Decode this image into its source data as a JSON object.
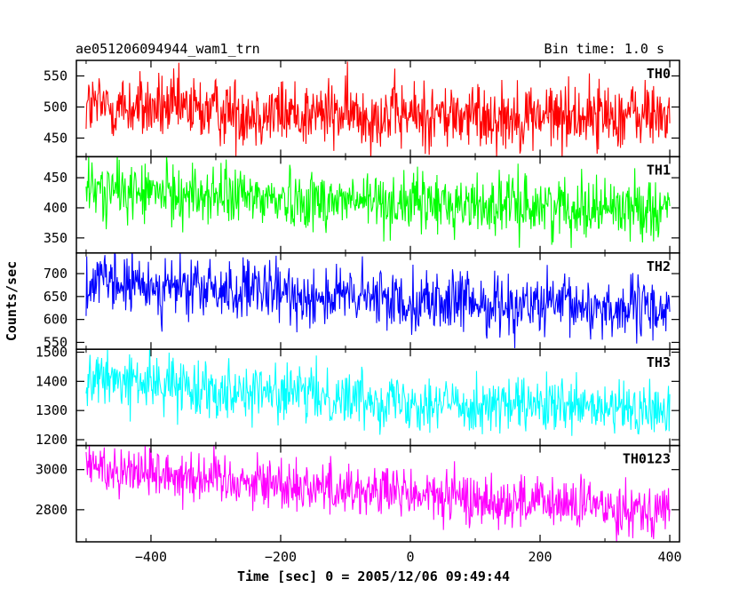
{
  "header": {
    "title": "ae051206094944_wam1_trn",
    "bin_time": "Bin time: 1.0 s"
  },
  "chart_data": {
    "type": "line",
    "title": "ae051206094944_wam1_trn",
    "xlabel": "Time [sec] 0 = 2005/12/06 09:49:44",
    "ylabel": "Counts/sec",
    "xlim": [
      -515,
      415
    ],
    "x_ticks": [
      -400,
      -200,
      0,
      200,
      400
    ],
    "x_tick_labels": [
      "−400",
      "−200",
      "0",
      "200",
      "400"
    ],
    "grid": false,
    "panels": [
      {
        "name": "TH0",
        "color": "#ff0000",
        "ylim": [
          420,
          575
        ],
        "y_ticks": [
          450,
          500,
          550
        ],
        "series": [
          {
            "name": "TH0",
            "x_start": -500,
            "x_end": 400,
            "bin": 1.0,
            "trend": [
              [
                -500,
                502
              ],
              [
                -200,
                490
              ],
              [
                100,
                485
              ],
              [
                400,
                488
              ]
            ],
            "noise_halfwidth": 50
          }
        ]
      },
      {
        "name": "TH1",
        "color": "#00ff00",
        "ylim": [
          325,
          485
        ],
        "y_ticks": [
          350,
          400,
          450
        ],
        "series": [
          {
            "name": "TH1",
            "x_start": -500,
            "x_end": 400,
            "bin": 1.0,
            "trend": [
              [
                -500,
                430
              ],
              [
                -200,
                415
              ],
              [
                100,
                405
              ],
              [
                400,
                400
              ]
            ],
            "noise_halfwidth": 45
          }
        ]
      },
      {
        "name": "TH2",
        "color": "#0000ff",
        "ylim": [
          535,
          745
        ],
        "y_ticks": [
          550,
          600,
          650,
          700
        ],
        "series": [
          {
            "name": "TH2",
            "x_start": -500,
            "x_end": 400,
            "bin": 1.0,
            "trend": [
              [
                -500,
                680
              ],
              [
                -200,
                655
              ],
              [
                100,
                635
              ],
              [
                400,
                620
              ]
            ],
            "noise_halfwidth": 60
          }
        ]
      },
      {
        "name": "TH3",
        "color": "#00ffff",
        "ylim": [
          1180,
          1510
        ],
        "y_ticks": [
          1200,
          1300,
          1400,
          1500
        ],
        "series": [
          {
            "name": "TH3",
            "x_start": -500,
            "x_end": 400,
            "bin": 1.0,
            "trend": [
              [
                -500,
                1410
              ],
              [
                -200,
                1360
              ],
              [
                100,
                1320
              ],
              [
                400,
                1295
              ]
            ],
            "noise_halfwidth": 85
          }
        ]
      },
      {
        "name": "TH0123",
        "color": "#ff00ff",
        "ylim": [
          2640,
          3120
        ],
        "y_ticks": [
          2800,
          3000
        ],
        "series": [
          {
            "name": "TH0123",
            "x_start": -500,
            "x_end": 400,
            "bin": 1.0,
            "trend": [
              [
                -500,
                3020
              ],
              [
                -200,
                2930
              ],
              [
                100,
                2850
              ],
              [
                400,
                2800
              ]
            ],
            "noise_halfwidth": 120
          }
        ]
      }
    ]
  }
}
